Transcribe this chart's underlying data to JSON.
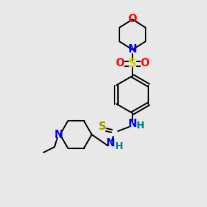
{
  "background_color": "#e8e8e8",
  "atom_colors": {
    "O": "#ff0000",
    "N": "#0000ff",
    "S_sulfonyl": "#cccc00",
    "S_thio": "#999900",
    "H": "#008080",
    "C": "#000000"
  },
  "figsize": [
    3.0,
    3.0
  ],
  "dpi": 100
}
